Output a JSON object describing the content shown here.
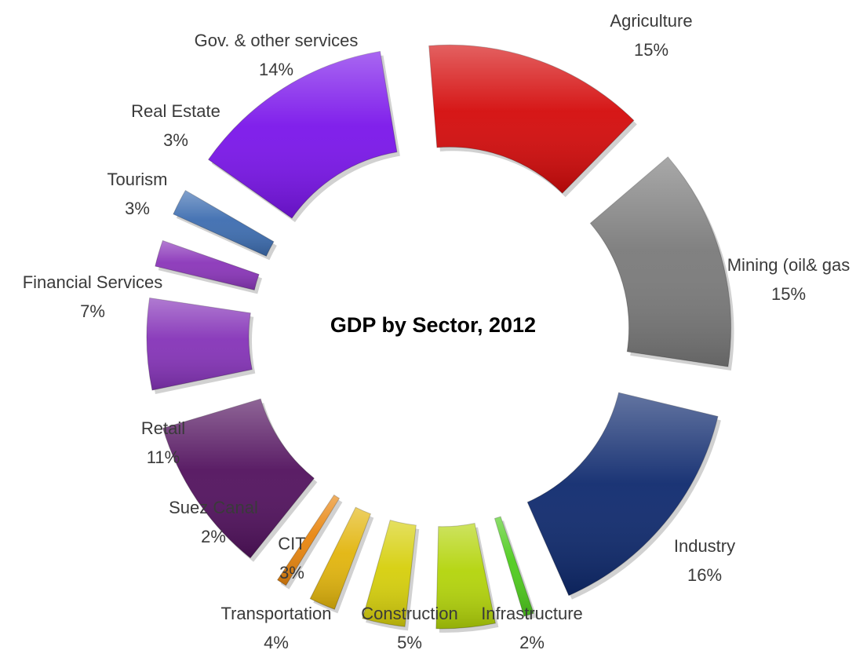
{
  "chart_data": {
    "type": "pie",
    "title": "GDP by Sector, 2012",
    "unit": "%",
    "slices": [
      {
        "label": "Agriculture",
        "value": 15,
        "value_label": "15%",
        "color": "#d40b0b"
      },
      {
        "label": "Mining (oil& gas",
        "value": 15,
        "value_label": "15%",
        "color": "#7a7a7a"
      },
      {
        "label": "Industry",
        "value": 16,
        "value_label": "16%",
        "color": "#0f2a6e"
      },
      {
        "label": "Infrastructure",
        "value": 2,
        "value_label": "2%",
        "color": "#4ecb1c"
      },
      {
        "label": "Construction",
        "value": 5,
        "value_label": "5%",
        "color": "#b3d40a"
      },
      {
        "label": "Transportation",
        "value": 4,
        "value_label": "4%",
        "color": "#d6cf0b"
      },
      {
        "label": "CIT",
        "value": 3,
        "value_label": "3%",
        "color": "#e2b50d"
      },
      {
        "label": "Suez Canal",
        "value": 2,
        "value_label": "2%",
        "color": "#e8850e"
      },
      {
        "label": "Retail",
        "value": 11,
        "value_label": "11%",
        "color": "#52125e"
      },
      {
        "label": "Financial Services",
        "value": 7,
        "value_label": "7%",
        "color": "#8533b8"
      },
      {
        "label": "Tourism",
        "value": 3,
        "value_label": "3%",
        "color": "#8a35b9"
      },
      {
        "label": "Real Estate",
        "value": 3,
        "value_label": "3%",
        "color": "#3d6db0"
      },
      {
        "label": "Gov. & other services",
        "value": 14,
        "value_label": "14%",
        "color": "#7a15ea"
      }
    ]
  }
}
